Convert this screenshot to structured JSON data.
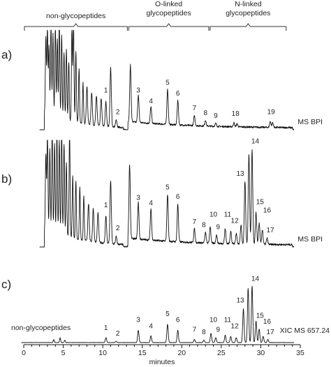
{
  "chart_data": {
    "type": "line",
    "xlabel": "minutes",
    "xlim": [
      0,
      35
    ],
    "x_ticks": [
      0,
      5,
      10,
      15,
      20,
      25,
      30,
      35
    ],
    "regions": [
      {
        "label": "non-glycopeptides",
        "range": [
          0,
          13.2
        ]
      },
      {
        "label": "O-linked\nglycopeptides",
        "range": [
          13.2,
          23.5
        ]
      },
      {
        "label": "N-linked\nglycopeptides",
        "range": [
          23.5,
          33.3
        ]
      }
    ],
    "panels": [
      {
        "id": "a)",
        "trace_label": "MS BPI",
        "baseline_start": 2.6,
        "peaks": [
          {
            "t": 2.8,
            "h": 0.78
          },
          {
            "t": 3.0,
            "h": 0.9
          },
          {
            "t": 3.2,
            "h": 0.7
          },
          {
            "t": 3.45,
            "h": 1.0
          },
          {
            "t": 3.7,
            "h": 0.85
          },
          {
            "t": 4.0,
            "h": 0.95
          },
          {
            "t": 4.25,
            "h": 0.8
          },
          {
            "t": 4.5,
            "h": 1.0
          },
          {
            "t": 4.8,
            "h": 0.85
          },
          {
            "t": 5.1,
            "h": 0.68
          },
          {
            "t": 5.4,
            "h": 0.72
          },
          {
            "t": 5.7,
            "h": 0.6
          },
          {
            "t": 6.1,
            "h": 0.95
          },
          {
            "t": 6.3,
            "h": 1.0
          },
          {
            "t": 6.6,
            "h": 0.72
          },
          {
            "t": 7.0,
            "h": 0.55
          },
          {
            "t": 7.5,
            "h": 0.42
          },
          {
            "t": 8.0,
            "h": 0.38
          },
          {
            "t": 8.6,
            "h": 0.33
          },
          {
            "t": 9.2,
            "h": 0.3
          },
          {
            "t": 9.8,
            "h": 0.28
          },
          {
            "t": 10.4,
            "h": 0.25
          },
          {
            "t": 11.0,
            "h": 0.6
          },
          {
            "t": 11.7,
            "h": 0.07
          },
          {
            "t": 13.5,
            "h": 0.58
          },
          {
            "t": 14.5,
            "h": 0.28
          },
          {
            "t": 16.1,
            "h": 0.17
          },
          {
            "t": 18.2,
            "h": 0.36
          },
          {
            "t": 19.5,
            "h": 0.25
          },
          {
            "t": 21.6,
            "h": 0.1
          },
          {
            "t": 23.0,
            "h": 0.06
          },
          {
            "t": 24.3,
            "h": 0.03
          },
          {
            "t": 26.6,
            "h": 0.04
          },
          {
            "t": 27.0,
            "h": 0.03
          },
          {
            "t": 31.2,
            "h": 0.06
          },
          {
            "t": 31.5,
            "h": 0.05
          }
        ],
        "labels": [
          {
            "text": "1",
            "t": 10.4,
            "h": 0.36
          },
          {
            "text": "2",
            "t": 11.9,
            "h": 0.14
          },
          {
            "text": "3",
            "t": 14.5,
            "h": 0.36
          },
          {
            "text": "4",
            "t": 16.1,
            "h": 0.25
          },
          {
            "text": "5",
            "t": 18.2,
            "h": 0.44
          },
          {
            "text": "6",
            "t": 19.5,
            "h": 0.33
          },
          {
            "text": "7",
            "t": 21.6,
            "h": 0.18
          },
          {
            "text": "8",
            "t": 23.0,
            "h": 0.13
          },
          {
            "text": "9",
            "t": 24.3,
            "h": 0.1
          },
          {
            "text": "18",
            "t": 26.8,
            "h": 0.12
          },
          {
            "text": "19",
            "t": 31.3,
            "h": 0.14
          }
        ]
      },
      {
        "id": "b)",
        "trace_label": "MS BPI",
        "baseline_start": 2.6,
        "peaks": [
          {
            "t": 2.8,
            "h": 0.72
          },
          {
            "t": 3.0,
            "h": 0.95
          },
          {
            "t": 3.3,
            "h": 0.8
          },
          {
            "t": 3.6,
            "h": 1.0
          },
          {
            "t": 3.9,
            "h": 0.85
          },
          {
            "t": 4.2,
            "h": 1.0
          },
          {
            "t": 4.5,
            "h": 0.9
          },
          {
            "t": 4.8,
            "h": 1.0
          },
          {
            "t": 5.1,
            "h": 0.88
          },
          {
            "t": 5.4,
            "h": 0.7
          },
          {
            "t": 5.8,
            "h": 1.0
          },
          {
            "t": 6.2,
            "h": 0.6
          },
          {
            "t": 6.6,
            "h": 0.55
          },
          {
            "t": 7.1,
            "h": 0.5
          },
          {
            "t": 7.6,
            "h": 0.42
          },
          {
            "t": 8.2,
            "h": 0.36
          },
          {
            "t": 8.8,
            "h": 0.32
          },
          {
            "t": 9.4,
            "h": 0.28
          },
          {
            "t": 10.4,
            "h": 0.26
          },
          {
            "t": 11.0,
            "h": 0.6
          },
          {
            "t": 11.7,
            "h": 0.07
          },
          {
            "t": 13.4,
            "h": 0.7
          },
          {
            "t": 14.5,
            "h": 0.35
          },
          {
            "t": 16.1,
            "h": 0.3
          },
          {
            "t": 18.2,
            "h": 0.45
          },
          {
            "t": 19.5,
            "h": 0.36
          },
          {
            "t": 21.6,
            "h": 0.13
          },
          {
            "t": 23.0,
            "h": 0.1
          },
          {
            "t": 23.6,
            "h": 0.16
          },
          {
            "t": 24.4,
            "h": 0.08
          },
          {
            "t": 25.5,
            "h": 0.14
          },
          {
            "t": 26.2,
            "h": 0.12
          },
          {
            "t": 26.9,
            "h": 0.1
          },
          {
            "t": 27.5,
            "h": 0.18
          },
          {
            "t": 28.0,
            "h": 0.6
          },
          {
            "t": 28.5,
            "h": 0.86
          },
          {
            "t": 28.9,
            "h": 0.9
          },
          {
            "t": 29.4,
            "h": 0.3
          },
          {
            "t": 29.8,
            "h": 0.2
          },
          {
            "t": 30.2,
            "h": 0.14
          },
          {
            "t": 30.8,
            "h": 0.06
          }
        ],
        "labels": [
          {
            "text": "1",
            "t": 10.4,
            "h": 0.36
          },
          {
            "text": "2",
            "t": 11.9,
            "h": 0.14
          },
          {
            "text": "3",
            "t": 14.5,
            "h": 0.43
          },
          {
            "text": "4",
            "t": 16.1,
            "h": 0.38
          },
          {
            "text": "5",
            "t": 18.2,
            "h": 0.53
          },
          {
            "text": "6",
            "t": 19.5,
            "h": 0.44
          },
          {
            "text": "7",
            "t": 21.6,
            "h": 0.2
          },
          {
            "text": "8",
            "t": 22.8,
            "h": 0.17
          },
          {
            "text": "10",
            "t": 24.0,
            "h": 0.27
          },
          {
            "text": "9",
            "t": 24.6,
            "h": 0.15
          },
          {
            "text": "11",
            "t": 25.8,
            "h": 0.27
          },
          {
            "text": "12",
            "t": 26.7,
            "h": 0.21
          },
          {
            "text": "13",
            "t": 27.4,
            "h": 0.66
          },
          {
            "text": "14",
            "t": 29.3,
            "h": 0.97
          },
          {
            "text": "15",
            "t": 29.9,
            "h": 0.39
          },
          {
            "text": "16",
            "t": 30.8,
            "h": 0.31
          },
          {
            "text": "17",
            "t": 31.2,
            "h": 0.12
          }
        ]
      },
      {
        "id": "c)",
        "trace_label": "XIC MS 657.24",
        "inline_label": "non-glycopeptides",
        "baseline_start": 0.3,
        "peaks": [
          {
            "t": 3.8,
            "h": 0.05
          },
          {
            "t": 4.6,
            "h": 0.08
          },
          {
            "t": 5.2,
            "h": 0.04
          },
          {
            "t": 10.4,
            "h": 0.08
          },
          {
            "t": 11.7,
            "h": 0.02
          },
          {
            "t": 14.5,
            "h": 0.2
          },
          {
            "t": 16.1,
            "h": 0.11
          },
          {
            "t": 18.2,
            "h": 0.3
          },
          {
            "t": 19.5,
            "h": 0.2
          },
          {
            "t": 21.6,
            "h": 0.05
          },
          {
            "t": 22.8,
            "h": 0.04
          },
          {
            "t": 23.7,
            "h": 0.15
          },
          {
            "t": 24.3,
            "h": 0.08
          },
          {
            "t": 25.5,
            "h": 0.12
          },
          {
            "t": 26.2,
            "h": 0.1
          },
          {
            "t": 26.9,
            "h": 0.08
          },
          {
            "t": 27.8,
            "h": 0.55
          },
          {
            "t": 28.4,
            "h": 0.88
          },
          {
            "t": 28.9,
            "h": 0.92
          },
          {
            "t": 29.4,
            "h": 0.35
          },
          {
            "t": 29.8,
            "h": 0.22
          },
          {
            "t": 30.3,
            "h": 0.1
          },
          {
            "t": 30.9,
            "h": 0.05
          }
        ],
        "labels": [
          {
            "text": "1",
            "t": 10.4,
            "h": 0.17
          },
          {
            "text": "2",
            "t": 11.9,
            "h": 0.08
          },
          {
            "text": "3",
            "t": 14.5,
            "h": 0.3
          },
          {
            "text": "4",
            "t": 16.1,
            "h": 0.2
          },
          {
            "text": "5",
            "t": 18.2,
            "h": 0.4
          },
          {
            "text": "6",
            "t": 19.5,
            "h": 0.3
          },
          {
            "text": "7",
            "t": 21.6,
            "h": 0.14
          },
          {
            "text": "8",
            "t": 22.8,
            "h": 0.1
          },
          {
            "text": "10",
            "t": 24.0,
            "h": 0.3
          },
          {
            "text": "9",
            "t": 24.6,
            "h": 0.14
          },
          {
            "text": "11",
            "t": 25.8,
            "h": 0.3
          },
          {
            "text": "12",
            "t": 26.7,
            "h": 0.2
          },
          {
            "text": "13",
            "t": 27.4,
            "h": 0.62
          },
          {
            "text": "14",
            "t": 29.3,
            "h": 0.97
          },
          {
            "text": "15",
            "t": 29.9,
            "h": 0.37
          },
          {
            "text": "16",
            "t": 30.8,
            "h": 0.27
          },
          {
            "text": "17",
            "t": 31.2,
            "h": 0.1
          }
        ]
      }
    ]
  }
}
